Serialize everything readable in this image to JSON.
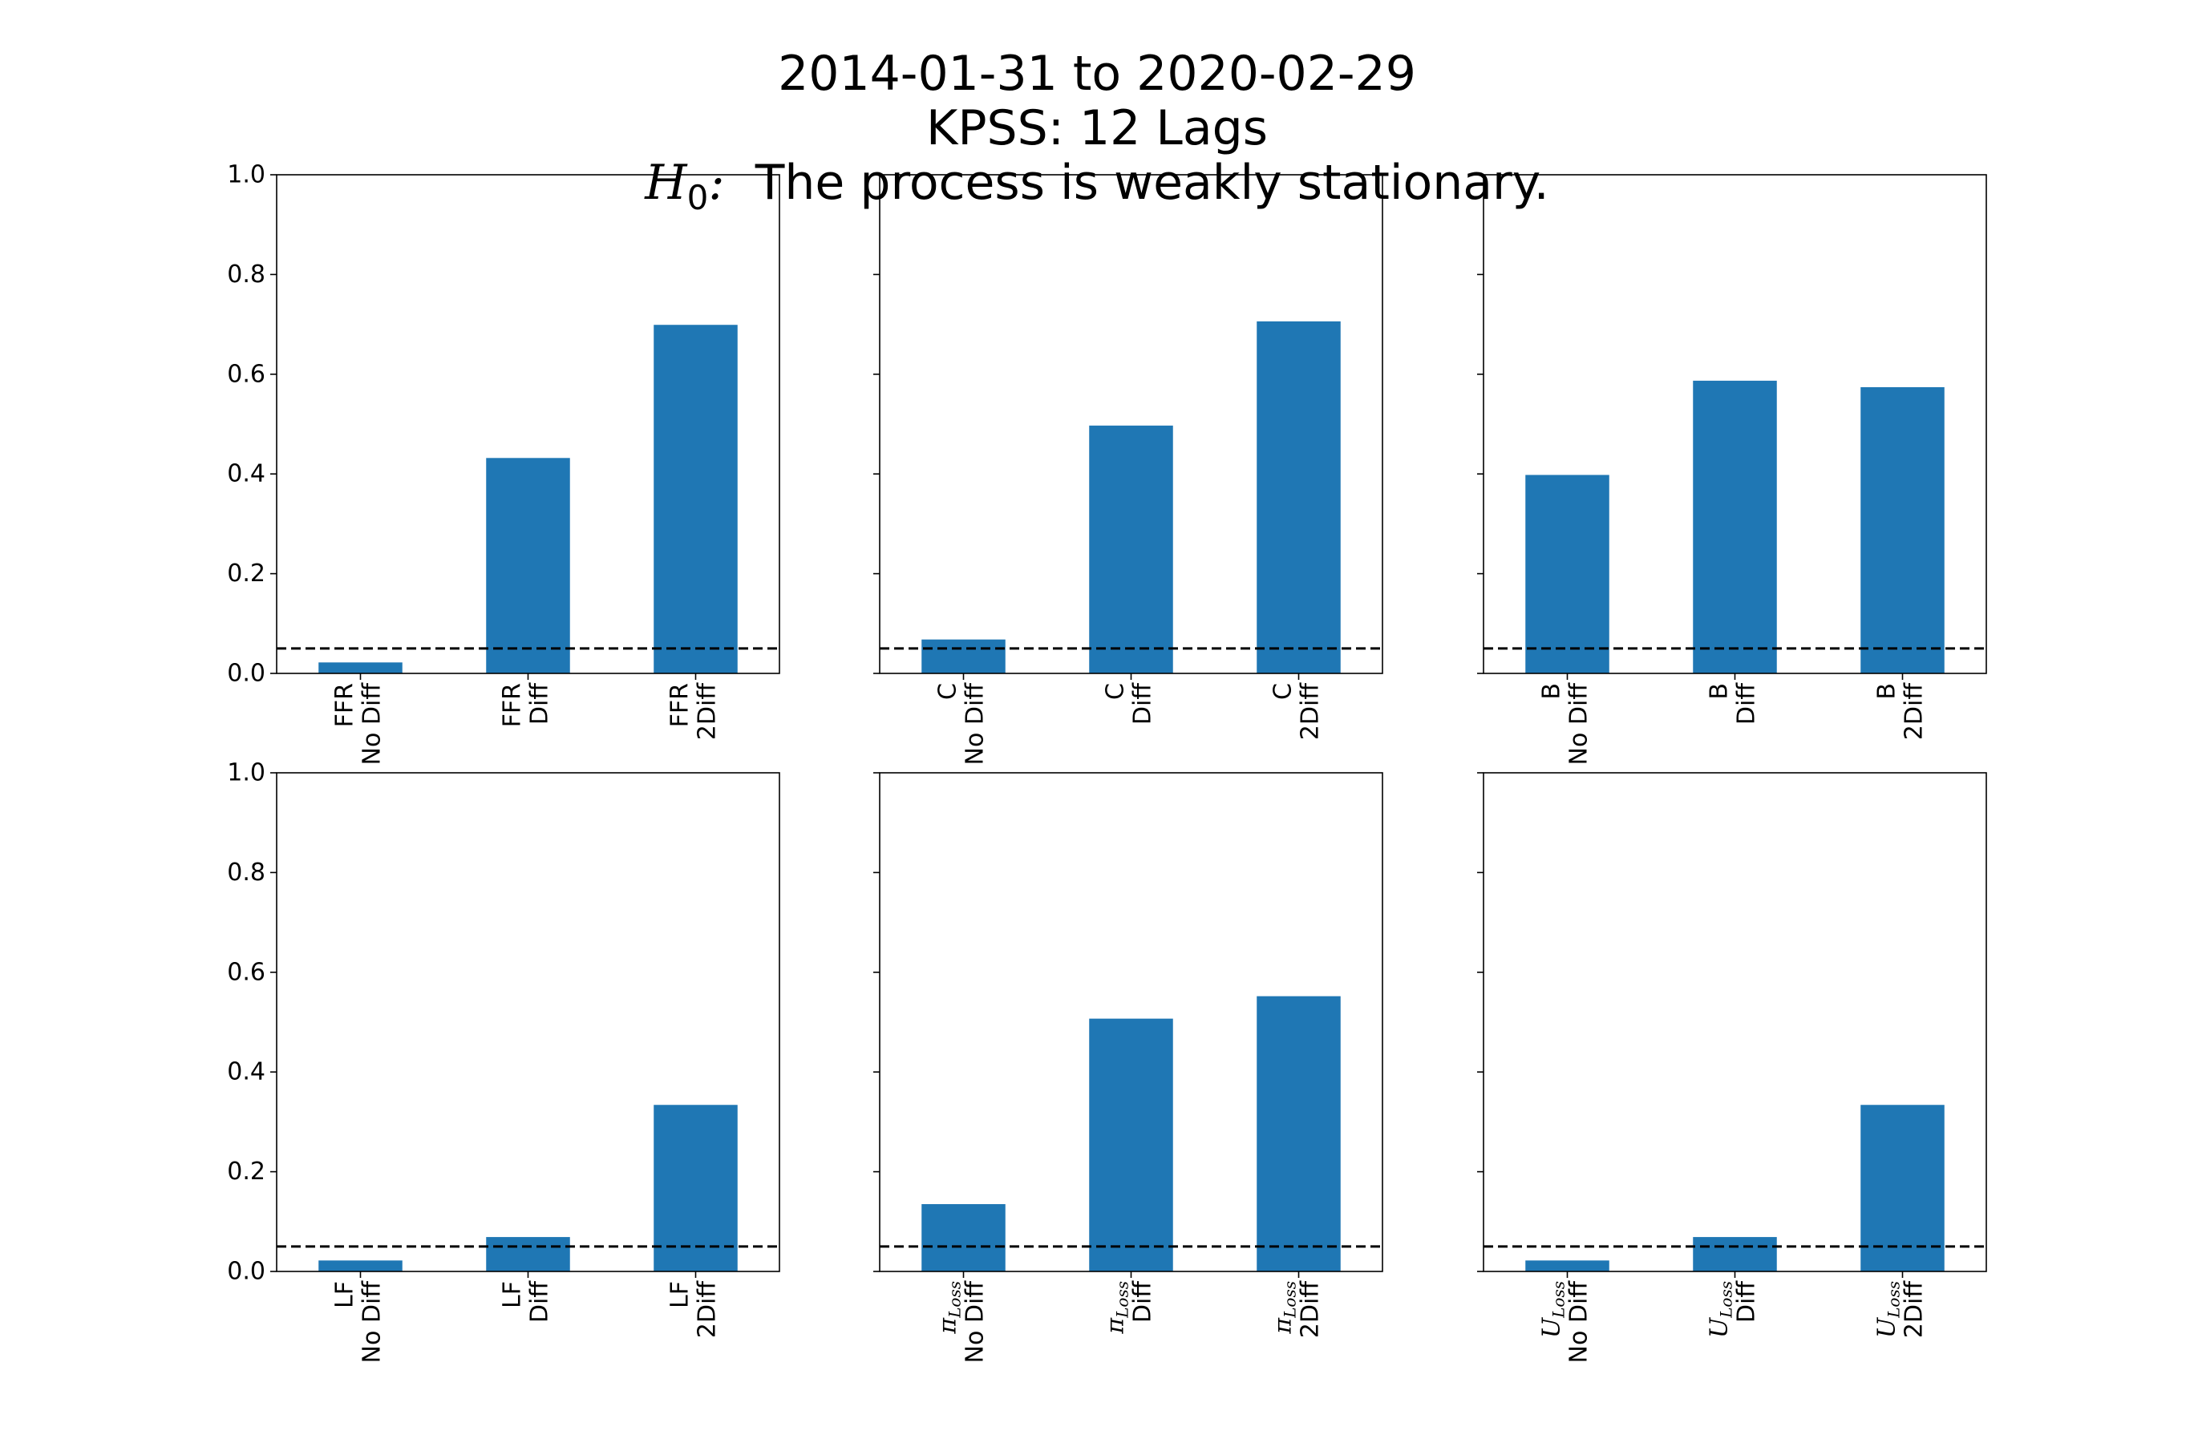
{
  "title": {
    "line1": "2014-01-31 to 2020-02-29",
    "line2": "KPSS: 12 Lags",
    "line3_math": "H",
    "line3_sub": "0",
    "line3_text": "The process is weakly stationary."
  },
  "colors": {
    "bar": "#1f77b4",
    "threshold": "#000000",
    "axes": "#000000"
  },
  "chart_data": [
    {
      "type": "bar",
      "ylim": [
        0,
        1.0
      ],
      "yticks": [
        "0.0",
        "0.2",
        "0.4",
        "0.6",
        "0.8",
        "1.0"
      ],
      "threshold": 0.05,
      "categories": [
        {
          "var": "FFR",
          "var_math": false,
          "sub": "",
          "diff": "No Diff"
        },
        {
          "var": "FFR",
          "var_math": false,
          "sub": "",
          "diff": "Diff"
        },
        {
          "var": "FFR",
          "var_math": false,
          "sub": "",
          "diff": "2Diff"
        }
      ],
      "values": [
        0.022,
        0.432,
        0.699
      ]
    },
    {
      "type": "bar",
      "ylim": [
        0,
        1.0
      ],
      "yticks": [
        "0.0",
        "0.2",
        "0.4",
        "0.6",
        "0.8",
        "1.0"
      ],
      "threshold": 0.05,
      "categories": [
        {
          "var": "C",
          "var_math": false,
          "sub": "",
          "diff": "No Diff"
        },
        {
          "var": "C",
          "var_math": false,
          "sub": "",
          "diff": "Diff"
        },
        {
          "var": "C",
          "var_math": false,
          "sub": "",
          "diff": "2Diff"
        }
      ],
      "values": [
        0.068,
        0.497,
        0.706
      ]
    },
    {
      "type": "bar",
      "ylim": [
        0,
        1.0
      ],
      "yticks": [
        "0.0",
        "0.2",
        "0.4",
        "0.6",
        "0.8",
        "1.0"
      ],
      "threshold": 0.05,
      "categories": [
        {
          "var": "B",
          "var_math": false,
          "sub": "",
          "diff": "No Diff"
        },
        {
          "var": "B",
          "var_math": false,
          "sub": "",
          "diff": "Diff"
        },
        {
          "var": "B",
          "var_math": false,
          "sub": "",
          "diff": "2Diff"
        }
      ],
      "values": [
        0.398,
        0.587,
        0.574
      ]
    },
    {
      "type": "bar",
      "ylim": [
        0,
        1.0
      ],
      "yticks": [
        "0.0",
        "0.2",
        "0.4",
        "0.6",
        "0.8",
        "1.0"
      ],
      "threshold": 0.05,
      "categories": [
        {
          "var": "LF",
          "var_math": false,
          "sub": "",
          "diff": "No Diff"
        },
        {
          "var": "LF",
          "var_math": false,
          "sub": "",
          "diff": "Diff"
        },
        {
          "var": "LF",
          "var_math": false,
          "sub": "",
          "diff": "2Diff"
        }
      ],
      "values": [
        0.022,
        0.069,
        0.334
      ]
    },
    {
      "type": "bar",
      "ylim": [
        0,
        1.0
      ],
      "yticks": [
        "0.0",
        "0.2",
        "0.4",
        "0.6",
        "0.8",
        "1.0"
      ],
      "threshold": 0.05,
      "categories": [
        {
          "var": "π",
          "var_math": true,
          "sub": "Loss",
          "diff": "No Diff"
        },
        {
          "var": "π",
          "var_math": true,
          "sub": "Loss",
          "diff": "Diff"
        },
        {
          "var": "π",
          "var_math": true,
          "sub": "Loss",
          "diff": "2Diff"
        }
      ],
      "values": [
        0.135,
        0.507,
        0.552
      ]
    },
    {
      "type": "bar",
      "ylim": [
        0,
        1.0
      ],
      "yticks": [
        "0.0",
        "0.2",
        "0.4",
        "0.6",
        "0.8",
        "1.0"
      ],
      "threshold": 0.05,
      "categories": [
        {
          "var": "U",
          "var_math": true,
          "sub": "Loss",
          "diff": "No Diff"
        },
        {
          "var": "U",
          "var_math": true,
          "sub": "Loss",
          "diff": "Diff"
        },
        {
          "var": "U",
          "var_math": true,
          "sub": "Loss",
          "diff": "2Diff"
        }
      ],
      "values": [
        0.022,
        0.069,
        0.334
      ]
    }
  ]
}
